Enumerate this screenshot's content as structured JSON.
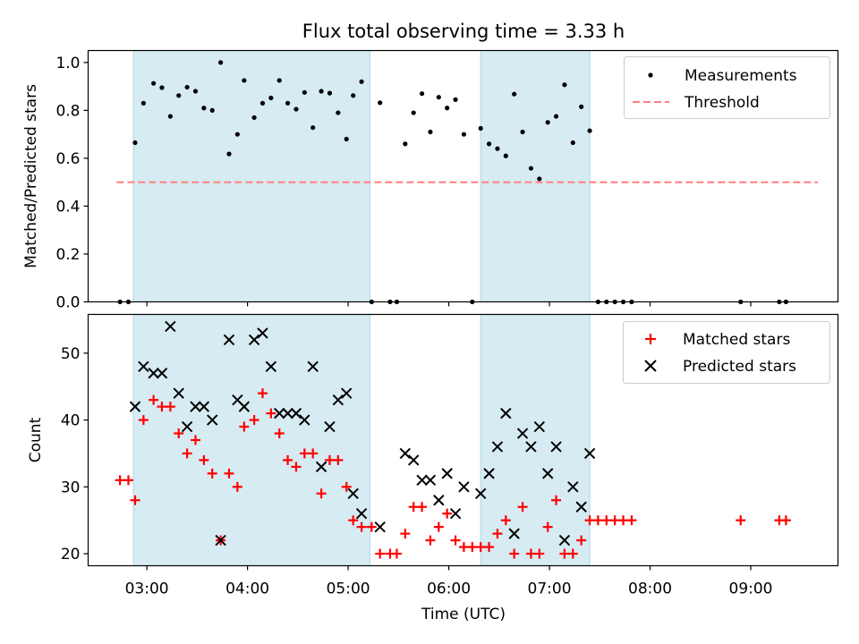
{
  "chart_data": [
    {
      "type": "scatter",
      "title": "Flux total observing time = 3.33 h",
      "xlabel": "",
      "ylabel": "Matched/Predicted stars",
      "ylim": [
        0,
        1.05
      ],
      "xlim": [
        "02:25",
        "09:52"
      ],
      "yticks": [
        "0.0",
        "0.2",
        "0.4",
        "0.6",
        "0.8",
        "1.0"
      ],
      "grid": false,
      "legend_position": "top-right",
      "shaded_intervals": [
        [
          "02:52",
          "05:13"
        ],
        [
          "06:19",
          "07:24"
        ]
      ],
      "threshold": {
        "name": "Threshold",
        "y": 0.5,
        "x_range": [
          "02:42",
          "09:40"
        ],
        "color": "#ff7f7f"
      },
      "series": [
        {
          "name": "Measurements",
          "color": "#000000",
          "points": [
            [
              "02:44",
              0.0
            ],
            [
              "02:49",
              0.0
            ],
            [
              "02:53",
              0.665
            ],
            [
              "02:58",
              0.83
            ],
            [
              "03:04",
              0.913
            ],
            [
              "03:09",
              0.895
            ],
            [
              "03:14",
              0.775
            ],
            [
              "03:19",
              0.862
            ],
            [
              "03:24",
              0.897
            ],
            [
              "03:29",
              0.88
            ],
            [
              "03:34",
              0.81
            ],
            [
              "03:39",
              0.8
            ],
            [
              "03:44",
              1.0
            ],
            [
              "03:49",
              0.618
            ],
            [
              "03:54",
              0.7
            ],
            [
              "03:58",
              0.925
            ],
            [
              "04:04",
              0.77
            ],
            [
              "04:09",
              0.83
            ],
            [
              "04:14",
              0.852
            ],
            [
              "04:19",
              0.925
            ],
            [
              "04:24",
              0.83
            ],
            [
              "04:29",
              0.805
            ],
            [
              "04:34",
              0.875
            ],
            [
              "04:39",
              0.728
            ],
            [
              "04:44",
              0.88
            ],
            [
              "04:49",
              0.872
            ],
            [
              "04:54",
              0.79
            ],
            [
              "04:59",
              0.68
            ],
            [
              "05:03",
              0.862
            ],
            [
              "05:08",
              0.92
            ],
            [
              "05:14",
              0.0
            ],
            [
              "05:19",
              0.832
            ],
            [
              "05:25",
              0.0
            ],
            [
              "05:29",
              0.0
            ],
            [
              "05:34",
              0.66
            ],
            [
              "05:39",
              0.79
            ],
            [
              "05:44",
              0.87
            ],
            [
              "05:49",
              0.71
            ],
            [
              "05:54",
              0.855
            ],
            [
              "05:59",
              0.81
            ],
            [
              "06:04",
              0.845
            ],
            [
              "06:09",
              0.7
            ],
            [
              "06:14",
              0.0
            ],
            [
              "06:19",
              0.725
            ],
            [
              "06:24",
              0.66
            ],
            [
              "06:29",
              0.64
            ],
            [
              "06:34",
              0.61
            ],
            [
              "06:39",
              0.868
            ],
            [
              "06:44",
              0.71
            ],
            [
              "06:49",
              0.558
            ],
            [
              "06:54",
              0.514
            ],
            [
              "06:59",
              0.75
            ],
            [
              "07:04",
              0.775
            ],
            [
              "07:09",
              0.907
            ],
            [
              "07:14",
              0.665
            ],
            [
              "07:19",
              0.815
            ],
            [
              "07:24",
              0.715
            ],
            [
              "07:29",
              0.0
            ],
            [
              "07:34",
              0.0
            ],
            [
              "07:39",
              0.0
            ],
            [
              "07:44",
              0.0
            ],
            [
              "07:49",
              0.0
            ],
            [
              "08:54",
              0.0
            ],
            [
              "09:17",
              0.0
            ],
            [
              "09:21",
              0.0
            ]
          ]
        }
      ]
    },
    {
      "type": "scatter",
      "title": "",
      "xlabel": "Time (UTC)",
      "ylabel": "Count",
      "ylim": [
        18.2,
        55.8
      ],
      "xlim": [
        "02:25",
        "09:52"
      ],
      "yticks": [
        "20",
        "30",
        "40",
        "50"
      ],
      "xticks": [
        "03:00",
        "04:00",
        "05:00",
        "06:00",
        "07:00",
        "08:00",
        "09:00"
      ],
      "grid": false,
      "legend_position": "top-right",
      "shaded_intervals": [
        [
          "02:52",
          "05:13"
        ],
        [
          "06:19",
          "07:24"
        ]
      ],
      "series": [
        {
          "name": "Matched stars",
          "marker": "plus",
          "color": "#ff0000",
          "points": [
            [
              "02:44",
              31
            ],
            [
              "02:49",
              31
            ],
            [
              "02:53",
              28
            ],
            [
              "02:58",
              40
            ],
            [
              "03:04",
              43
            ],
            [
              "03:09",
              42
            ],
            [
              "03:14",
              42
            ],
            [
              "03:19",
              38
            ],
            [
              "03:24",
              35
            ],
            [
              "03:29",
              37
            ],
            [
              "03:34",
              34
            ],
            [
              "03:39",
              32
            ],
            [
              "03:44",
              22
            ],
            [
              "03:49",
              32
            ],
            [
              "03:54",
              30
            ],
            [
              "03:58",
              39
            ],
            [
              "04:04",
              40
            ],
            [
              "04:09",
              44
            ],
            [
              "04:14",
              41
            ],
            [
              "04:19",
              38
            ],
            [
              "04:24",
              34
            ],
            [
              "04:29",
              33
            ],
            [
              "04:34",
              35
            ],
            [
              "04:39",
              35
            ],
            [
              "04:44",
              29
            ],
            [
              "04:49",
              34
            ],
            [
              "04:54",
              34
            ],
            [
              "04:59",
              30
            ],
            [
              "05:03",
              25
            ],
            [
              "05:08",
              24
            ],
            [
              "05:14",
              24
            ],
            [
              "05:19",
              20
            ],
            [
              "05:25",
              20
            ],
            [
              "05:29",
              20
            ],
            [
              "05:34",
              23
            ],
            [
              "05:39",
              27
            ],
            [
              "05:44",
              27
            ],
            [
              "05:49",
              22
            ],
            [
              "05:54",
              24
            ],
            [
              "05:59",
              26
            ],
            [
              "06:04",
              22
            ],
            [
              "06:09",
              21
            ],
            [
              "06:14",
              21
            ],
            [
              "06:19",
              21
            ],
            [
              "06:24",
              21
            ],
            [
              "06:29",
              23
            ],
            [
              "06:34",
              25
            ],
            [
              "06:39",
              20
            ],
            [
              "06:44",
              27
            ],
            [
              "06:49",
              20
            ],
            [
              "06:54",
              20
            ],
            [
              "06:59",
              24
            ],
            [
              "07:04",
              28
            ],
            [
              "07:09",
              20
            ],
            [
              "07:14",
              20
            ],
            [
              "07:19",
              22
            ],
            [
              "07:24",
              25
            ],
            [
              "07:29",
              25
            ],
            [
              "07:34",
              25
            ],
            [
              "07:39",
              25
            ],
            [
              "07:44",
              25
            ],
            [
              "07:49",
              25
            ],
            [
              "08:54",
              25
            ],
            [
              "09:17",
              25
            ],
            [
              "09:21",
              25
            ]
          ]
        },
        {
          "name": "Predicted stars",
          "marker": "x",
          "color": "#000000",
          "points": [
            [
              "02:53",
              42
            ],
            [
              "02:58",
              48
            ],
            [
              "03:04",
              47
            ],
            [
              "03:09",
              47
            ],
            [
              "03:14",
              54
            ],
            [
              "03:19",
              44
            ],
            [
              "03:24",
              39
            ],
            [
              "03:29",
              42
            ],
            [
              "03:34",
              42
            ],
            [
              "03:39",
              40
            ],
            [
              "03:44",
              22
            ],
            [
              "03:49",
              52
            ],
            [
              "03:54",
              43
            ],
            [
              "03:58",
              42
            ],
            [
              "04:04",
              52
            ],
            [
              "04:09",
              53
            ],
            [
              "04:14",
              48
            ],
            [
              "04:19",
              41
            ],
            [
              "04:24",
              41
            ],
            [
              "04:29",
              41
            ],
            [
              "04:34",
              40
            ],
            [
              "04:39",
              48
            ],
            [
              "04:44",
              33
            ],
            [
              "04:49",
              39
            ],
            [
              "04:54",
              43
            ],
            [
              "04:59",
              44
            ],
            [
              "05:03",
              29
            ],
            [
              "05:08",
              26
            ],
            [
              "05:19",
              24
            ],
            [
              "05:34",
              35
            ],
            [
              "05:39",
              34
            ],
            [
              "05:44",
              31
            ],
            [
              "05:49",
              31
            ],
            [
              "05:54",
              28
            ],
            [
              "05:59",
              32
            ],
            [
              "06:04",
              26
            ],
            [
              "06:09",
              30
            ],
            [
              "06:19",
              29
            ],
            [
              "06:24",
              32
            ],
            [
              "06:29",
              36
            ],
            [
              "06:34",
              41
            ],
            [
              "06:39",
              23
            ],
            [
              "06:44",
              38
            ],
            [
              "06:49",
              36
            ],
            [
              "06:54",
              39
            ],
            [
              "06:59",
              32
            ],
            [
              "07:04",
              36
            ],
            [
              "07:09",
              22
            ],
            [
              "07:14",
              30
            ],
            [
              "07:19",
              27
            ],
            [
              "07:24",
              35
            ]
          ]
        }
      ]
    }
  ],
  "colors": {
    "shade": "#add8e6",
    "threshold": "#ff7f7f",
    "matched": "#ff0000",
    "predicted": "#000000",
    "measurements": "#000000"
  }
}
